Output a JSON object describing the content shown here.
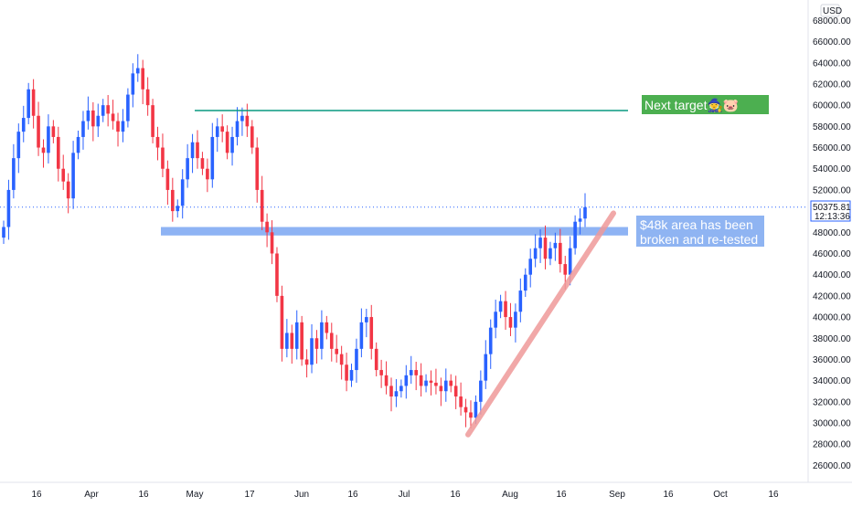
{
  "currency_label": "USD",
  "price_tag": {
    "price": "50375.81",
    "countdown": "12:13:36"
  },
  "annotations": {
    "next_target": "Next target🧙🐷",
    "area_note_line1": "$48k area has been",
    "area_note_line2": "broken and re-tested"
  },
  "colors": {
    "up": "#2962ff",
    "down": "#f23645",
    "target_line": "#089981",
    "target_box": "#4caf50",
    "support_band": "#7aa6f2",
    "trendline": "#ef9a9a"
  },
  "chart_data": {
    "type": "candlestick",
    "y_ticks": [
      "68000.00",
      "66000.00",
      "64000.00",
      "62000.00",
      "60000.00",
      "58000.00",
      "56000.00",
      "54000.00",
      "52000.00",
      "50000.00",
      "48000.00",
      "46000.00",
      "44000.00",
      "42000.00",
      "40000.00",
      "38000.00",
      "36000.00",
      "34000.00",
      "32000.00",
      "30000.00",
      "28000.00",
      "26000.00"
    ],
    "ylim": [
      25000,
      69500
    ],
    "x_ticks": [
      "16",
      "Apr",
      "16",
      "May",
      "17",
      "Jun",
      "16",
      "Jul",
      "16",
      "Aug",
      "16",
      "Sep",
      "16",
      "Oct",
      "16"
    ],
    "levels": {
      "target": 59500,
      "support_band": [
        47700,
        48500
      ],
      "current": 50375.81,
      "trendline": {
        "from": [
          "Jul 20",
          28900
        ],
        "to": [
          "Aug 29",
          49800
        ]
      }
    },
    "candles_close": [
      48500,
      52000,
      55000,
      57500,
      58800,
      61500,
      59000,
      56000,
      55500,
      58000,
      57000,
      54000,
      52800,
      51200,
      55500,
      57000,
      58500,
      59500,
      58000,
      59000,
      60000,
      59200,
      58500,
      57500,
      58500,
      61000,
      63000,
      63500,
      61500,
      60000,
      57000,
      56000,
      54000,
      52000,
      50000,
      50500,
      53000,
      55000,
      56500,
      55000,
      54000,
      53000,
      57000,
      58000,
      57500,
      55500,
      57000,
      58500,
      59000,
      58000,
      56000,
      52000,
      49000,
      48000,
      46000,
      42000,
      37000,
      38500,
      37000,
      39500,
      36000,
      35500,
      38000,
      37000,
      39500,
      38500,
      37000,
      36500,
      35500,
      34000,
      35000,
      37000,
      39500,
      40000,
      37000,
      35000,
      34500,
      33500,
      32500,
      33000,
      33500,
      34500,
      35000,
      34500,
      33500,
      34000,
      33800,
      33500,
      33000,
      34000,
      33500,
      32500,
      31500,
      31000,
      30500,
      32000,
      34000,
      36500,
      39000,
      40500,
      41500,
      40000,
      39000,
      40500,
      42500,
      44000,
      45500,
      46500,
      47500,
      45500,
      46500,
      47000,
      45000,
      44000,
      46500,
      49000,
      49300,
      50375.81
    ]
  }
}
